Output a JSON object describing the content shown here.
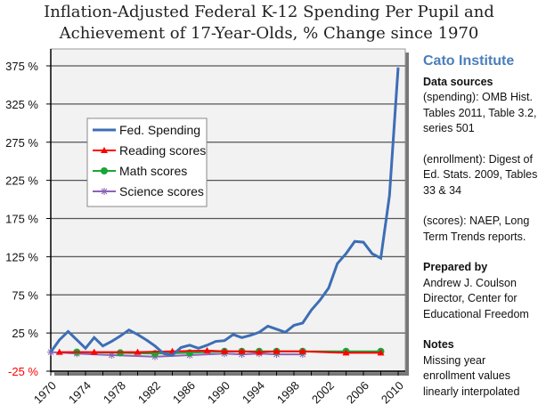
{
  "chart_data": {
    "type": "line",
    "title_lines": [
      "Inflation-Adjusted Federal K-12 Spending Per Pupil and",
      "Achievement of 17-Year-Olds, % Change since 1970"
    ],
    "xlabel": "",
    "ylabel": "",
    "xlim": [
      1970,
      2010
    ],
    "ylim": [
      -25,
      375
    ],
    "x_ticks": [
      "1970",
      "1974",
      "1978",
      "1982",
      "1986",
      "1990",
      "1994",
      "1998",
      "2002",
      "2006",
      "2010"
    ],
    "y_ticks": [
      "-25 %",
      "25 %",
      "75 %",
      "125 %",
      "175 %",
      "225 %",
      "275 %",
      "325 %",
      "375 %"
    ],
    "y_tick_values": [
      -25,
      25,
      75,
      125,
      175,
      225,
      275,
      325,
      375
    ],
    "grid": "horizontal",
    "legend_position": "upper-left",
    "series": [
      {
        "name": "Fed. Spending",
        "color": "#3d6eb5",
        "marker": "none",
        "x": [
          1970,
          1971,
          1972,
          1973,
          1974,
          1975,
          1976,
          1977,
          1978,
          1979,
          1980,
          1981,
          1982,
          1983,
          1984,
          1985,
          1986,
          1987,
          1988,
          1989,
          1990,
          1991,
          1992,
          1993,
          1994,
          1995,
          1996,
          1997,
          1998,
          1999,
          2000,
          2001,
          2002,
          2003,
          2004,
          2005,
          2006,
          2007,
          2008,
          2009,
          2010
        ],
        "y": [
          0,
          16,
          27,
          16,
          5,
          19,
          8,
          14,
          21,
          29,
          23,
          16,
          8,
          -2,
          -4,
          6,
          9,
          5,
          9,
          14,
          15,
          23,
          19,
          22,
          26,
          34,
          30,
          26,
          35,
          38,
          55,
          68,
          84,
          116,
          129,
          145,
          144,
          129,
          123,
          205,
          373
        ]
      },
      {
        "name": "Reading scores",
        "color": "#ff0000",
        "marker": "triangle",
        "x": [
          1971,
          1975,
          1980,
          1984,
          1988,
          1990,
          1992,
          1994,
          1996,
          1999,
          2004,
          2008
        ],
        "y": [
          0,
          0,
          0,
          1,
          2,
          1,
          1,
          0,
          1,
          1,
          -1,
          -1
        ]
      },
      {
        "name": "Math scores",
        "color": "#1aa538",
        "marker": "circle",
        "x": [
          1973,
          1978,
          1982,
          1986,
          1990,
          1992,
          1994,
          1996,
          1999,
          2004,
          2008
        ],
        "y": [
          0,
          -1,
          -2,
          -1,
          1,
          1,
          1,
          1,
          1,
          1,
          1
        ]
      },
      {
        "name": "Science scores",
        "color": "#8b62b8",
        "marker": "star",
        "x": [
          1970,
          1973,
          1977,
          1982,
          1986,
          1990,
          1992,
          1994,
          1996,
          1999
        ],
        "y": [
          0,
          -2,
          -4,
          -6,
          -4,
          -2,
          -3,
          -2,
          -3,
          -3
        ]
      }
    ]
  },
  "sidebar": {
    "brand": "Cato Institute",
    "sources_heading": "Data sources",
    "spending_source": "(spending):  OMB Hist. Tables 2011, Table 3.2, series 501",
    "enrollment_source": "(enrollment):  Digest of Ed. Stats. 2009, Tables 33 & 34",
    "scores_source": "(scores): NAEP, Long Term Trends reports.",
    "prepared_heading": "Prepared by",
    "prepared_name": "Andrew J. Coulson",
    "prepared_role": "Director, Center for Educational Freedom",
    "notes_heading": "Notes",
    "notes_text": "Missing year enrollment values linearly interpolated"
  }
}
